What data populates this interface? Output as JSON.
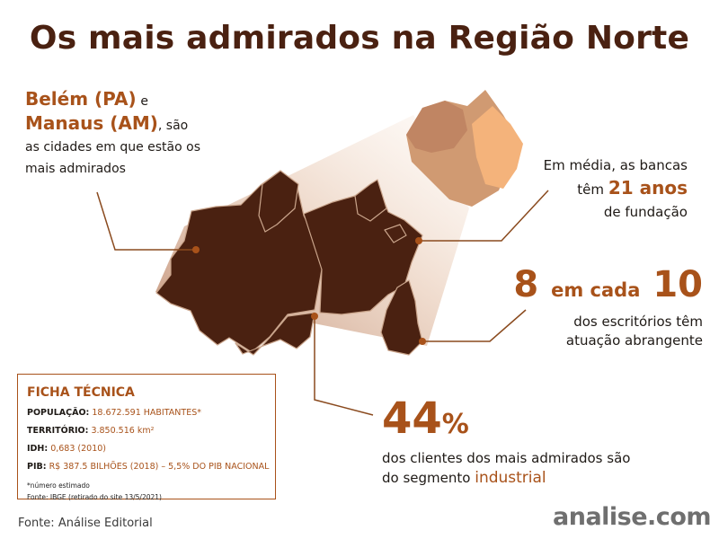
{
  "title": "Os mais admirados na Região Norte",
  "cities": {
    "city1": "Belém (PA)",
    "conj": "e",
    "city2": "Manaus (AM)",
    "suffix": ", são",
    "line3": "as cidades em que estão os",
    "line4": "mais admirados"
  },
  "years": {
    "line1": "Em média, as bancas",
    "prefix": "têm",
    "value": "21 anos",
    "line3": "de fundação"
  },
  "offices": {
    "num1": "8",
    "mid": "em cada",
    "num2": "10",
    "line2": "dos escritórios têm",
    "line3": "atuação abrangente"
  },
  "clients": {
    "value": "44",
    "sign": "%",
    "line2": "dos clientes dos mais admirados são",
    "line3_prefix": "do segmento",
    "line3_highlight": "industrial"
  },
  "ficha": {
    "title": "FICHA TÉCNICA",
    "rows": [
      {
        "label": "POPULAÇÃO:",
        "value": "18.672.591 HABITANTES*"
      },
      {
        "label": "TERRITÓRIO:",
        "value": "3.850.516 km²"
      },
      {
        "label": "IDH:",
        "value": "0,683 (2010)"
      },
      {
        "label": "PIB:",
        "value": "R$ 387.5 BILHÕES (2018) – 5,5% DO PIB NACIONAL"
      }
    ],
    "note1": "*número estimado",
    "note2": "Fonte: IBGE (retirado do site 13/5/2021)"
  },
  "footer": {
    "source": "Fonte: Análise Editorial",
    "brand": "analise.com"
  },
  "colors": {
    "title": "#4a2111",
    "accent": "#a8521a",
    "region": "#4a2111",
    "brazil_light": "#f4b37b",
    "brazil_mid": "#d09a72"
  }
}
